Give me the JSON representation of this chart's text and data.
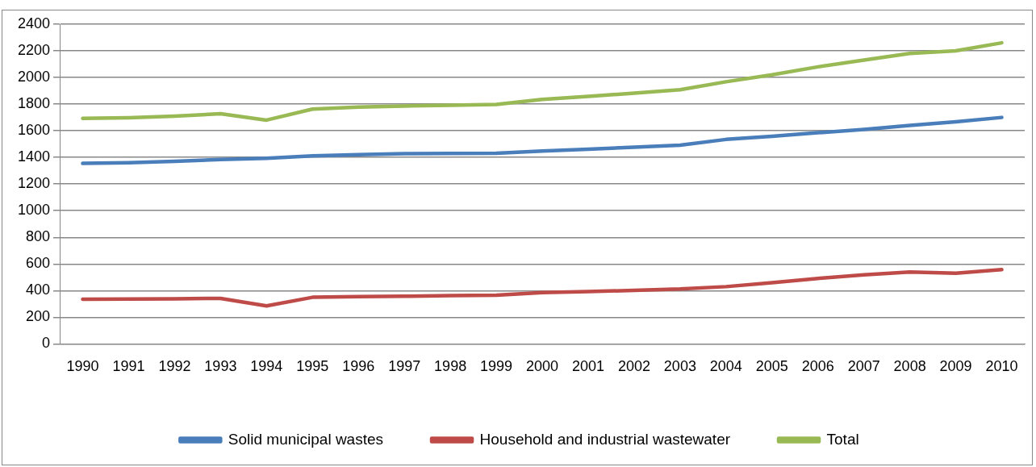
{
  "chart_data": {
    "type": "line",
    "categories": [
      "1990",
      "1991",
      "1992",
      "1993",
      "1994",
      "1995",
      "1996",
      "1997",
      "1998",
      "1999",
      "2000",
      "2001",
      "2002",
      "2003",
      "2004",
      "2005",
      "2006",
      "2007",
      "2008",
      "2009",
      "2010"
    ],
    "series": [
      {
        "name": "Solid municipal wastes",
        "color": "#4a7ebb",
        "values": [
          1355,
          1360,
          1370,
          1385,
          1393,
          1412,
          1420,
          1428,
          1430,
          1432,
          1448,
          1462,
          1476,
          1492,
          1535,
          1558,
          1585,
          1610,
          1640,
          1668,
          1700
        ]
      },
      {
        "name": "Household and industrial wastewater",
        "color": "#be4b48",
        "values": [
          335,
          337,
          339,
          342,
          285,
          350,
          355,
          358,
          362,
          366,
          385,
          393,
          402,
          412,
          430,
          460,
          492,
          518,
          540,
          530,
          558
        ]
      },
      {
        "name": "Total",
        "color": "#98b954",
        "values": [
          1693,
          1698,
          1710,
          1728,
          1680,
          1763,
          1778,
          1786,
          1792,
          1798,
          1835,
          1858,
          1882,
          1908,
          1968,
          2020,
          2080,
          2130,
          2180,
          2200,
          2260
        ]
      }
    ],
    "ylim": [
      0,
      2400
    ],
    "yticks": [
      0,
      200,
      400,
      600,
      800,
      1000,
      1200,
      1400,
      1600,
      1800,
      2000,
      2200,
      2400
    ],
    "grid": "y",
    "legend": "bottom",
    "marker": "none",
    "line_style": "solid"
  }
}
